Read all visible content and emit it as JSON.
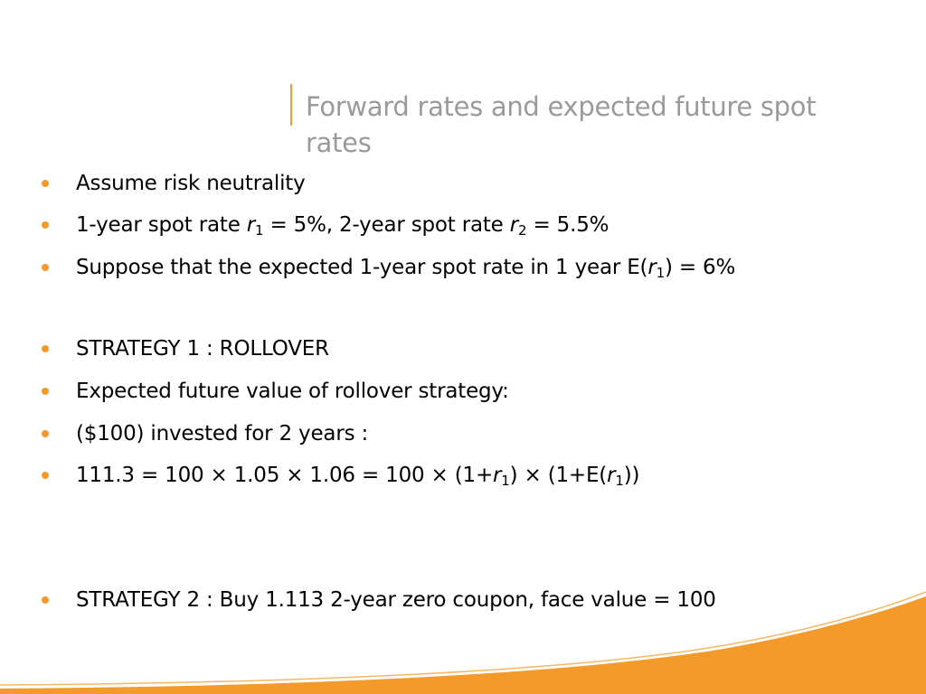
{
  "slide": {
    "title": "Forward rates and expected future spot rates",
    "accent_color": "#f39a2b",
    "title_color": "#9a9a9a"
  },
  "bullets": [
    {
      "segments": [
        {
          "t": "Assume risk neutrality"
        }
      ]
    },
    {
      "segments": [
        {
          "t": "1-year spot rate "
        },
        {
          "t": "r",
          "i": true
        },
        {
          "t": "1",
          "sub": true
        },
        {
          "t": " = 5%, 2-year spot rate "
        },
        {
          "t": "r",
          "i": true
        },
        {
          "t": "2",
          "sub": true
        },
        {
          "t": " = 5.5%"
        }
      ]
    },
    {
      "segments": [
        {
          "t": "Suppose that the expected 1-year spot rate in 1 year E("
        },
        {
          "t": "r",
          "i": true
        },
        {
          "t": "1",
          "sub": true
        },
        {
          "t": ") = 6%"
        }
      ]
    },
    {
      "segments": [
        {
          "t": "STRATEGY 1 : ROLLOVER"
        }
      ]
    },
    {
      "segments": [
        {
          "t": "Expected future value of rollover strategy:"
        }
      ]
    },
    {
      "segments": [
        {
          "t": "($100) invested for 2 years :"
        }
      ]
    },
    {
      "segments": [
        {
          "t": "111.3 = 100 × 1.05 × 1.06 = 100 × (1+"
        },
        {
          "t": "r",
          "i": true
        },
        {
          "t": "1",
          "sub": true
        },
        {
          "t": ") × (1+E("
        },
        {
          "t": "r",
          "i": true
        },
        {
          "t": "1",
          "sub": true
        },
        {
          "t": "))"
        }
      ]
    },
    {
      "segments": [
        {
          "t": "STRATEGY 2 : Buy 1.113 2-year zero coupon, face value = 100"
        }
      ]
    }
  ]
}
